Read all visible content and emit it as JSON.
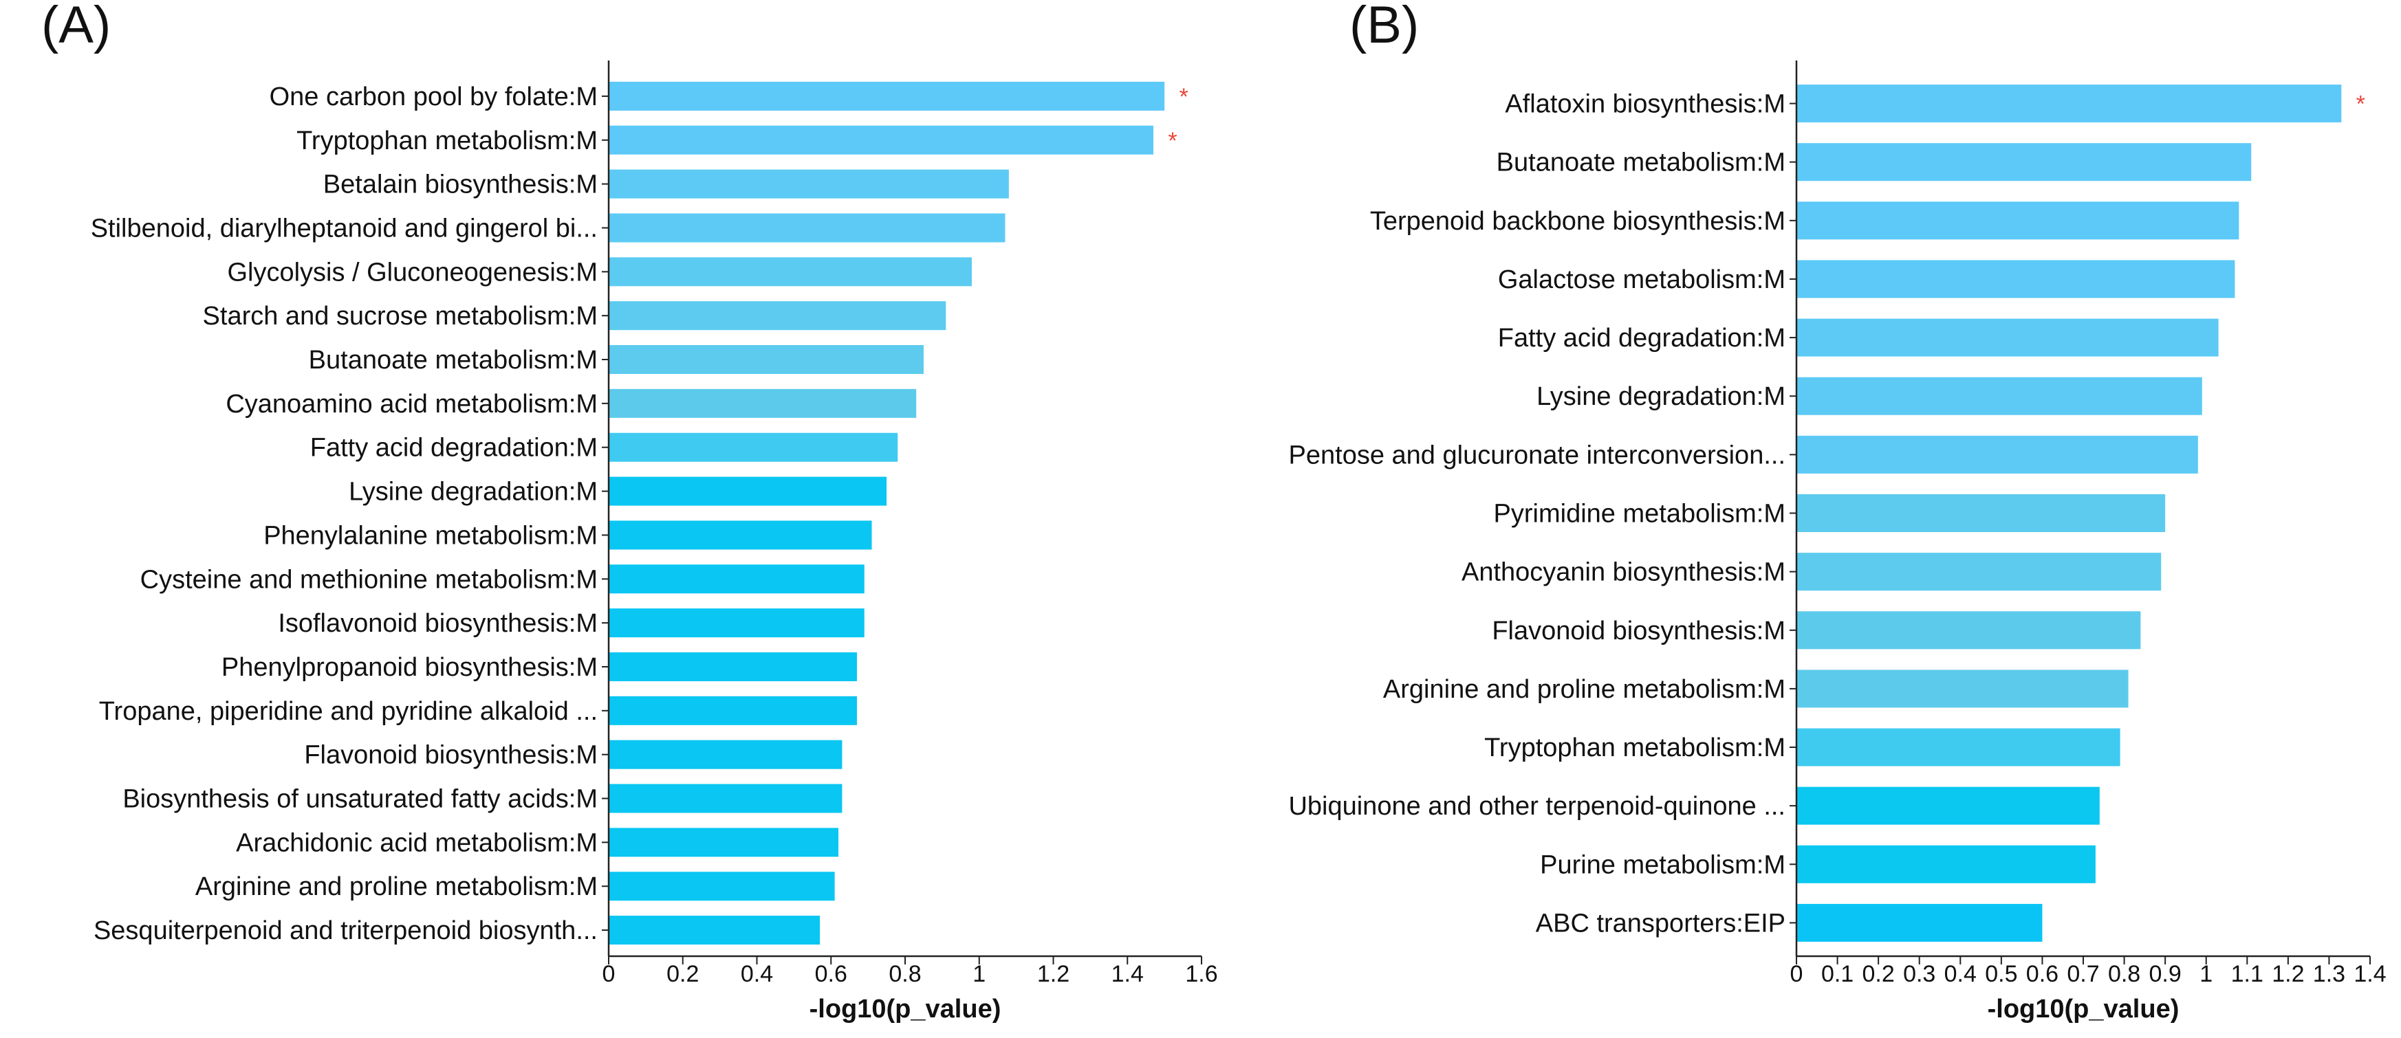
{
  "chart_data": [
    {
      "panel_label": "(A)",
      "type": "bar",
      "orientation": "horizontal",
      "xlabel": "-log10(p_value)",
      "xlim": [
        0,
        1.6
      ],
      "xticks": [
        "0",
        "0.2",
        "0.4",
        "0.6",
        "0.8",
        "1",
        "1.2",
        "1.4",
        "1.6"
      ],
      "xtick_values": [
        0,
        0.2,
        0.4,
        0.6,
        0.8,
        1.0,
        1.2,
        1.4,
        1.6
      ],
      "categories": [
        "One carbon pool by folate:M",
        "Tryptophan metabolism:M",
        "Betalain biosynthesis:M",
        "Stilbenoid, diarylheptanoid and gingerol bi...",
        "Glycolysis / Gluconeogenesis:M",
        "Starch and sucrose metabolism:M",
        "Butanoate metabolism:M",
        "Cyanoamino acid metabolism:M",
        "Fatty acid degradation:M",
        "Lysine degradation:M",
        "Phenylalanine metabolism:M",
        "Cysteine and methionine metabolism:M",
        "Isoflavonoid biosynthesis:M",
        "Phenylpropanoid biosynthesis:M",
        "Tropane, piperidine and pyridine alkaloid ...",
        "Flavonoid biosynthesis:M",
        "Biosynthesis of unsaturated fatty acids:M",
        "Arachidonic acid metabolism:M",
        "Arginine and proline metabolism:M",
        "Sesquiterpenoid and triterpenoid biosynth..."
      ],
      "values": [
        1.5,
        1.47,
        1.08,
        1.07,
        0.98,
        0.91,
        0.85,
        0.83,
        0.78,
        0.75,
        0.71,
        0.69,
        0.69,
        0.67,
        0.67,
        0.63,
        0.63,
        0.62,
        0.61,
        0.57
      ],
      "significant": [
        true,
        true,
        false,
        false,
        false,
        false,
        false,
        false,
        false,
        false,
        false,
        false,
        false,
        false,
        false,
        false,
        false,
        false,
        false,
        false
      ],
      "significance_mark": "*",
      "bar_colors": [
        "#5cc9f8",
        "#5cc9f8",
        "#5ccaf5",
        "#5ccaf5",
        "#5ccbf2",
        "#5ccbef",
        "#5ccbee",
        "#5ccbeb",
        "#3fcaf2",
        "#0ac6f2",
        "#0ac6f2",
        "#0ac6f2",
        "#0ac6f2",
        "#0ac6f2",
        "#0ac6f2",
        "#0ac6f2",
        "#0ac6f2",
        "#0ac6f2",
        "#0ac6f2",
        "#0ac6f2"
      ]
    },
    {
      "panel_label": "(B)",
      "type": "bar",
      "orientation": "horizontal",
      "xlabel": "-log10(p_value)",
      "xlim": [
        0,
        1.4
      ],
      "xticks": [
        "0",
        "0.1",
        "0.2",
        "0.3",
        "0.4",
        "0.5",
        "0.6",
        "0.7",
        "0.8",
        "0.9",
        "1",
        "1.1",
        "1.2",
        "1.3",
        "1.4"
      ],
      "xtick_values": [
        0,
        0.1,
        0.2,
        0.3,
        0.4,
        0.5,
        0.6,
        0.7,
        0.8,
        0.9,
        1.0,
        1.1,
        1.2,
        1.3,
        1.4
      ],
      "categories": [
        "Aflatoxin biosynthesis:M",
        "Butanoate metabolism:M",
        "Terpenoid backbone biosynthesis:M",
        "Galactose metabolism:M",
        "Fatty acid degradation:M",
        "Lysine degradation:M",
        "Pentose and glucuronate interconversion...",
        "Pyrimidine metabolism:M",
        "Anthocyanin biosynthesis:M",
        "Flavonoid biosynthesis:M",
        "Arginine and proline metabolism:M",
        "Tryptophan metabolism:M",
        "Ubiquinone and other terpenoid-quinone ...",
        "Purine metabolism:M",
        "ABC transporters:EIP"
      ],
      "values": [
        1.33,
        1.11,
        1.08,
        1.07,
        1.03,
        0.99,
        0.98,
        0.9,
        0.89,
        0.84,
        0.81,
        0.79,
        0.74,
        0.73,
        0.6
      ],
      "significant": [
        true,
        false,
        false,
        false,
        false,
        false,
        false,
        false,
        false,
        false,
        false,
        false,
        false,
        false,
        false
      ],
      "significance_mark": "*",
      "bar_colors": [
        "#5cc9f8",
        "#5cc9f8",
        "#5cc9f8",
        "#5cc9f8",
        "#5ccaf5",
        "#5ccaf5",
        "#5ccaf5",
        "#5ccbee",
        "#5ccbee",
        "#5ccbeb",
        "#5ccbeb",
        "#3fcaf0",
        "#0ac8f0",
        "#0ac8f0",
        "#0ac4f6"
      ]
    }
  ]
}
